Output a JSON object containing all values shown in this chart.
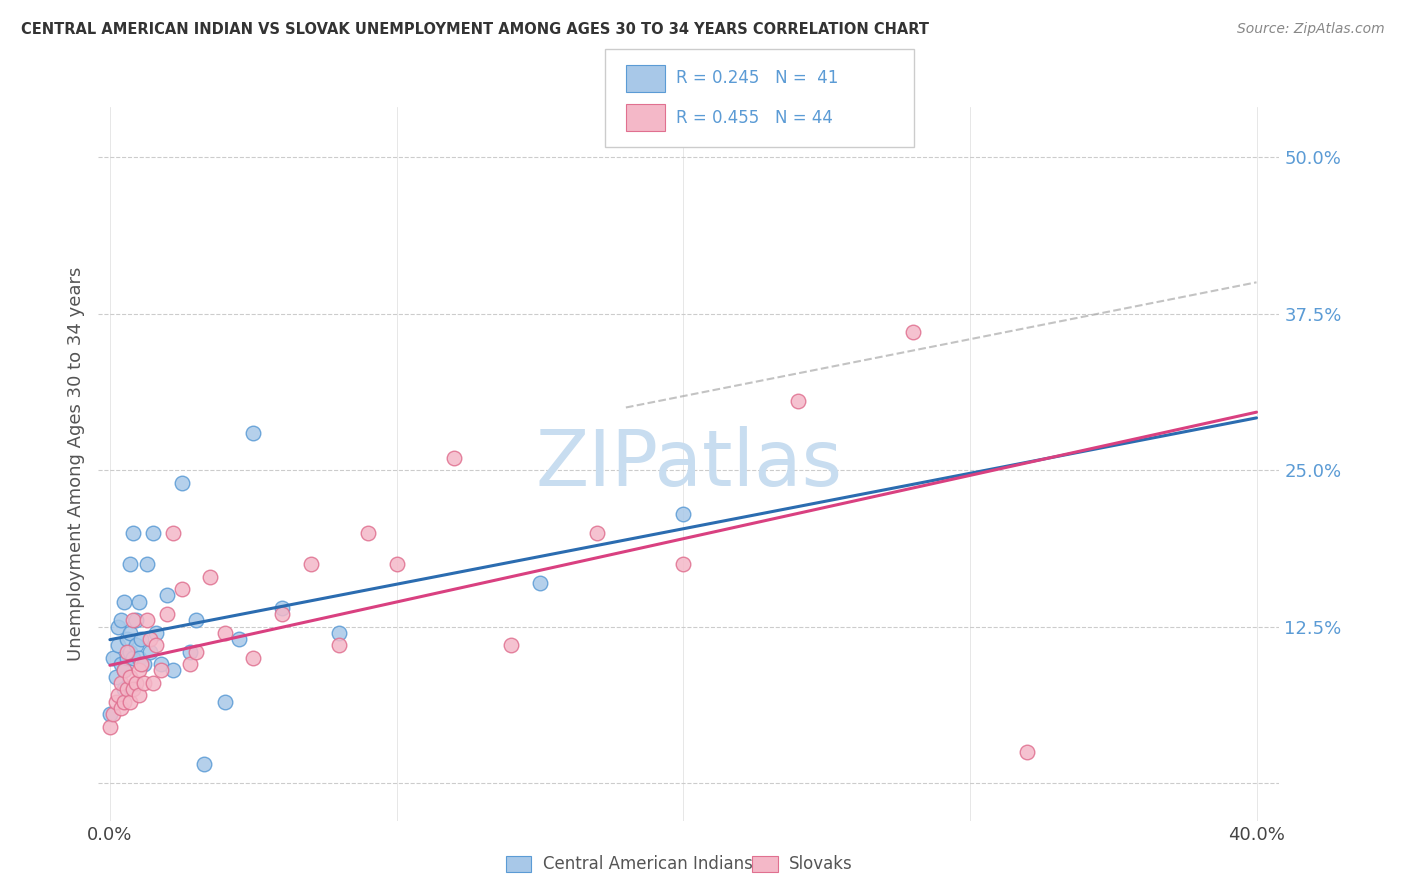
{
  "title": "CENTRAL AMERICAN INDIAN VS SLOVAK UNEMPLOYMENT AMONG AGES 30 TO 34 YEARS CORRELATION CHART",
  "source": "Source: ZipAtlas.com",
  "ylabel": "Unemployment Among Ages 30 to 34 years",
  "xlim": [
    0.0,
    0.4
  ],
  "ylim": [
    -0.03,
    0.54
  ],
  "blue_color": "#a8c8e8",
  "blue_edge_color": "#5b9bd5",
  "pink_color": "#f4b8c8",
  "pink_edge_color": "#e07090",
  "blue_line_color": "#2b6cb0",
  "pink_line_color": "#d94080",
  "blue_dash_color": "#bbbbbb",
  "watermark_color": "#c8ddf0",
  "legend_text_color": "#5b9bd5",
  "legend_R_blue": "R = 0.245",
  "legend_N_blue": "N =  41",
  "legend_R_pink": "R = 0.455",
  "legend_N_pink": "N = 44",
  "cai_x": [
    0.0,
    0.001,
    0.002,
    0.003,
    0.003,
    0.004,
    0.004,
    0.005,
    0.005,
    0.005,
    0.006,
    0.006,
    0.007,
    0.007,
    0.007,
    0.008,
    0.008,
    0.009,
    0.009,
    0.01,
    0.01,
    0.011,
    0.012,
    0.013,
    0.014,
    0.015,
    0.016,
    0.018,
    0.02,
    0.022,
    0.025,
    0.028,
    0.03,
    0.033,
    0.04,
    0.045,
    0.05,
    0.06,
    0.08,
    0.15,
    0.2
  ],
  "cai_y": [
    0.055,
    0.1,
    0.085,
    0.11,
    0.125,
    0.095,
    0.13,
    0.075,
    0.09,
    0.145,
    0.1,
    0.115,
    0.105,
    0.12,
    0.175,
    0.1,
    0.2,
    0.11,
    0.13,
    0.1,
    0.145,
    0.115,
    0.095,
    0.175,
    0.105,
    0.2,
    0.12,
    0.095,
    0.15,
    0.09,
    0.24,
    0.105,
    0.13,
    0.015,
    0.065,
    0.115,
    0.28,
    0.14,
    0.12,
    0.16,
    0.215
  ],
  "sk_x": [
    0.0,
    0.001,
    0.002,
    0.003,
    0.004,
    0.004,
    0.005,
    0.005,
    0.006,
    0.006,
    0.007,
    0.007,
    0.008,
    0.008,
    0.009,
    0.01,
    0.01,
    0.011,
    0.012,
    0.013,
    0.014,
    0.015,
    0.016,
    0.018,
    0.02,
    0.022,
    0.025,
    0.028,
    0.03,
    0.035,
    0.04,
    0.05,
    0.06,
    0.07,
    0.08,
    0.09,
    0.1,
    0.12,
    0.14,
    0.17,
    0.2,
    0.24,
    0.28,
    0.32
  ],
  "sk_y": [
    0.045,
    0.055,
    0.065,
    0.07,
    0.06,
    0.08,
    0.065,
    0.09,
    0.075,
    0.105,
    0.065,
    0.085,
    0.075,
    0.13,
    0.08,
    0.07,
    0.09,
    0.095,
    0.08,
    0.13,
    0.115,
    0.08,
    0.11,
    0.09,
    0.135,
    0.2,
    0.155,
    0.095,
    0.105,
    0.165,
    0.12,
    0.1,
    0.135,
    0.175,
    0.11,
    0.2,
    0.175,
    0.26,
    0.11,
    0.2,
    0.175,
    0.305,
    0.36,
    0.025
  ]
}
